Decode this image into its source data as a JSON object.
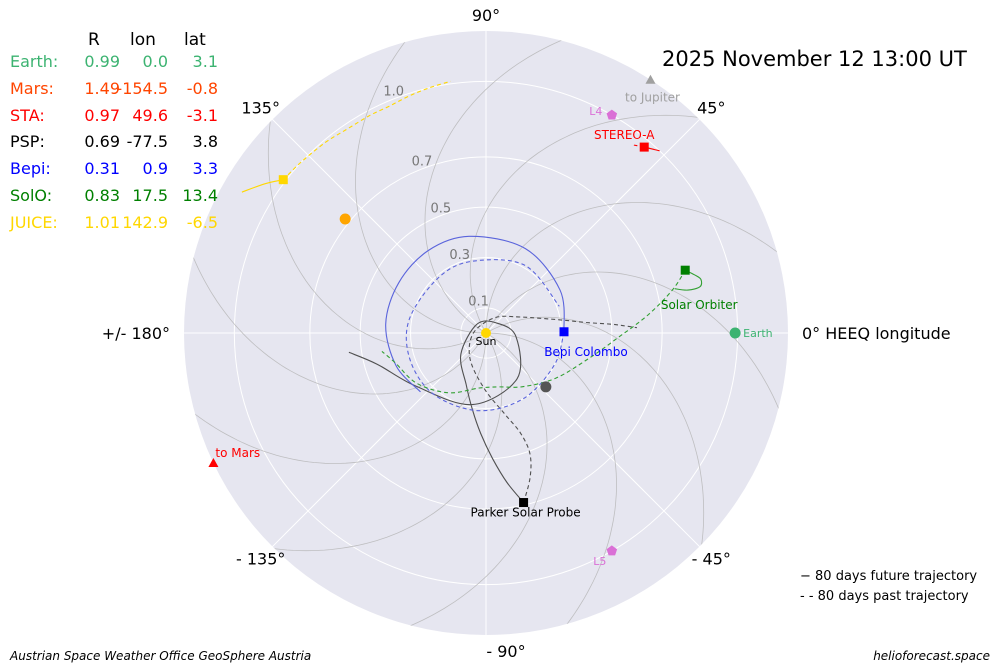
{
  "title": "2025 November 12  13:00 UT",
  "table": {
    "headers": [
      "R",
      "lon",
      "lat"
    ],
    "rows": [
      {
        "name": "Earth:",
        "R": "0.99",
        "lon": "0.0",
        "lat": "3.1",
        "color": "#3cb371"
      },
      {
        "name": "Mars:",
        "R": "1.49",
        "lon": "-154.5",
        "lat": "-0.8",
        "color": "#ff4500"
      },
      {
        "name": "STA:",
        "R": "0.97",
        "lon": "49.6",
        "lat": "-3.1",
        "color": "#ff0000"
      },
      {
        "name": "PSP:",
        "R": "0.69",
        "lon": "-77.5",
        "lat": "3.8",
        "color": "#000000"
      },
      {
        "name": "Bepi:",
        "R": "0.31",
        "lon": "0.9",
        "lat": "3.3",
        "color": "#0000ff"
      },
      {
        "name": "SolO:",
        "R": "0.83",
        "lon": "17.5",
        "lat": "13.4",
        "color": "#008000"
      },
      {
        "name": "JUICE:",
        "R": "1.01",
        "lon": "142.9",
        "lat": "-6.5",
        "color": "#ffd700"
      }
    ]
  },
  "legend": {
    "future": "−   80 days future trajectory",
    "past": "- -  80 days past trajectory"
  },
  "footer": {
    "left": "Austrian Space Weather Office   GeoSphere Austria",
    "right": "helioforecast.space"
  },
  "chart_data": {
    "type": "scatter",
    "projection": "polar",
    "rmax": 1.2,
    "r_ticks": [
      0.1,
      0.3,
      0.5,
      0.7,
      1.0
    ],
    "r_tick_labels": [
      "0.1",
      "0.3",
      "0.5",
      "0.7",
      "1.0"
    ],
    "r_label_angle_deg": 112,
    "theta_labels": [
      {
        "angle": 0,
        "text": "0° HEEQ longitude"
      },
      {
        "angle": 45,
        "text": "45°"
      },
      {
        "angle": 90,
        "text": "90°"
      },
      {
        "angle": 135,
        "text": "135°"
      },
      {
        "angle": 180,
        "text": "+/- 180°"
      },
      {
        "angle": -135,
        "text": "- 135°"
      },
      {
        "angle": -90,
        "text": "- 90°"
      },
      {
        "angle": -45,
        "text": "- 45°"
      }
    ],
    "grid": true,
    "colors": {
      "background": "#e6e6f0",
      "grid": "#ffffff",
      "parker_spiral": "#b4b4b4",
      "earth": "#3cb371",
      "mars": "#ff4500",
      "stereo_a": "#ff0000",
      "psp": "#000000",
      "bepi": "#0000ff",
      "solo": "#008000",
      "juice": "#ffd700",
      "lagrange": "#da70d6",
      "sun": "#ffd700"
    },
    "bodies": [
      {
        "id": "sun",
        "label": "Sun",
        "r": 0.0,
        "lon": 0.0,
        "marker": "circle",
        "color": "#ffd700"
      },
      {
        "id": "earth",
        "label": "Earth",
        "r": 0.99,
        "lon": 0.0,
        "marker": "circle",
        "color": "#3cb371"
      },
      {
        "id": "stereo_a",
        "label": "STEREO-A",
        "r": 0.97,
        "lon": 49.6,
        "marker": "square",
        "color": "#ff0000"
      },
      {
        "id": "psp",
        "label": "Parker Solar Probe",
        "r": 0.69,
        "lon": -77.5,
        "marker": "square",
        "color": "#000000"
      },
      {
        "id": "bepi",
        "label": "Bepi Colombo",
        "r": 0.31,
        "lon": 0.9,
        "marker": "square",
        "color": "#0000ff"
      },
      {
        "id": "solo",
        "label": "Solar Orbiter",
        "r": 0.83,
        "lon": 17.5,
        "marker": "square",
        "color": "#008000"
      },
      {
        "id": "juice",
        "label": "",
        "r": 1.01,
        "lon": 142.9,
        "marker": "square",
        "color": "#ffd700"
      },
      {
        "id": "l4",
        "label": "L4",
        "r": 1.0,
        "lon": 60.0,
        "marker": "pentagon",
        "color": "#da70d6"
      },
      {
        "id": "l5",
        "label": "L5",
        "r": 1.0,
        "lon": -60.0,
        "marker": "pentagon",
        "color": "#da70d6"
      },
      {
        "id": "venus",
        "label": "",
        "r": 0.72,
        "lon": 141.0,
        "marker": "circle",
        "color": "#ffa500"
      },
      {
        "id": "mercury",
        "label": "",
        "r": 0.32,
        "lon": -42.0,
        "marker": "circle",
        "color": "#555555"
      }
    ],
    "directions": [
      {
        "id": "to_jupiter",
        "label": "to Jupiter",
        "lon": 57.0,
        "color": "#a0a0a0"
      },
      {
        "id": "to_mars",
        "label": "to Mars",
        "lon": -154.5,
        "color": "#ff0000"
      }
    ],
    "trajectories": [
      {
        "name": "PSP future",
        "style": "solid",
        "color": "#505050",
        "points": [
          [
            0.69,
            -77.5
          ],
          [
            0.6,
            -82
          ],
          [
            0.5,
            -87
          ],
          [
            0.4,
            -93
          ],
          [
            0.31,
            -100
          ],
          [
            0.22,
            -111
          ],
          [
            0.13,
            -140
          ],
          [
            0.05,
            135
          ],
          [
            0.06,
            40
          ],
          [
            0.12,
            -7
          ],
          [
            0.22,
            -56
          ],
          [
            0.29,
            -101
          ],
          [
            0.35,
            -143
          ],
          [
            0.45,
            -164
          ],
          [
            0.55,
            -172
          ]
        ]
      },
      {
        "name": "PSP past",
        "style": "dashed",
        "color": "#505050",
        "points": [
          [
            0.69,
            -77.5
          ],
          [
            0.6,
            -73
          ],
          [
            0.51,
            -70
          ],
          [
            0.42,
            -71
          ],
          [
            0.33,
            -77
          ],
          [
            0.22,
            -92
          ],
          [
            0.12,
            -122
          ],
          [
            0.05,
            -180
          ],
          [
            0.07,
            60
          ],
          [
            0.15,
            25
          ],
          [
            0.3,
            10
          ],
          [
            0.4,
            6
          ],
          [
            0.5,
            4
          ],
          [
            0.55,
            3
          ],
          [
            0.6,
            2
          ]
        ]
      },
      {
        "name": "Bepi future",
        "style": "solid",
        "color": "#5a64dc",
        "points": [
          [
            0.31,
            0.9
          ],
          [
            0.34,
            30
          ],
          [
            0.37,
            65
          ],
          [
            0.39,
            100
          ],
          [
            0.4,
            125
          ],
          [
            0.4,
            150
          ],
          [
            0.4,
            175
          ],
          [
            0.38,
            -160
          ],
          [
            0.35,
            -138
          ]
        ]
      },
      {
        "name": "Bepi past",
        "style": "dashed",
        "color": "#5a64dc",
        "points": [
          [
            0.31,
            0.9
          ],
          [
            0.3,
            -25
          ],
          [
            0.3,
            -60
          ],
          [
            0.31,
            -95
          ],
          [
            0.32,
            -130
          ],
          [
            0.32,
            -160
          ],
          [
            0.31,
            170
          ],
          [
            0.29,
            130
          ],
          [
            0.29,
            100
          ],
          [
            0.31,
            60
          ],
          [
            0.31,
            20
          ]
        ]
      },
      {
        "name": "SolO future",
        "style": "solid",
        "color": "#32a032",
        "points": [
          [
            0.83,
            17.5
          ],
          [
            0.86,
            15.6
          ],
          [
            0.88,
            14.0
          ],
          [
            0.87,
            12.2
          ],
          [
            0.82,
            12.0
          ],
          [
            0.77,
            13.2
          ]
        ]
      },
      {
        "name": "SolO past",
        "style": "dashed",
        "color": "#32a032",
        "points": [
          [
            0.83,
            17.5
          ],
          [
            0.76,
            13.0
          ],
          [
            0.65,
            6.5
          ],
          [
            0.53,
            -1.6
          ],
          [
            0.42,
            -14
          ],
          [
            0.33,
            -33
          ],
          [
            0.26,
            -55
          ],
          [
            0.22,
            -77
          ],
          [
            0.22,
            -97
          ],
          [
            0.28,
            -122
          ],
          [
            0.34,
            -144
          ],
          [
            0.38,
            -162
          ],
          [
            0.42,
            -170
          ]
        ]
      },
      {
        "name": "JUICE future",
        "style": "dashed",
        "color": "#ffd700",
        "points": [
          [
            1.01,
            142.9
          ],
          [
            1.0,
            137
          ],
          [
            0.99,
            130
          ],
          [
            0.98,
            124
          ],
          [
            0.98,
            118
          ],
          [
            0.98,
            113
          ],
          [
            0.99,
            108
          ],
          [
            1.0,
            103
          ],
          [
            1.01,
            98
          ]
        ]
      },
      {
        "name": "JUICE past",
        "style": "solid",
        "color": "#ffd700",
        "points": [
          [
            1.01,
            142.9
          ],
          [
            1.06,
            146
          ],
          [
            1.12,
            150
          ]
        ]
      },
      {
        "name": "STA future",
        "style": "solid",
        "color": "#ff0000",
        "points": [
          [
            0.97,
            49.6
          ],
          [
            0.98,
            48.5
          ],
          [
            0.99,
            47.4
          ],
          [
            1.0,
            46.4
          ]
        ]
      },
      {
        "name": "STA past",
        "style": "dashed",
        "color": "#ff0000",
        "points": [
          [
            0.97,
            49.6
          ],
          [
            0.96,
            50.7
          ],
          [
            0.95,
            51.8
          ]
        ]
      }
    ]
  }
}
